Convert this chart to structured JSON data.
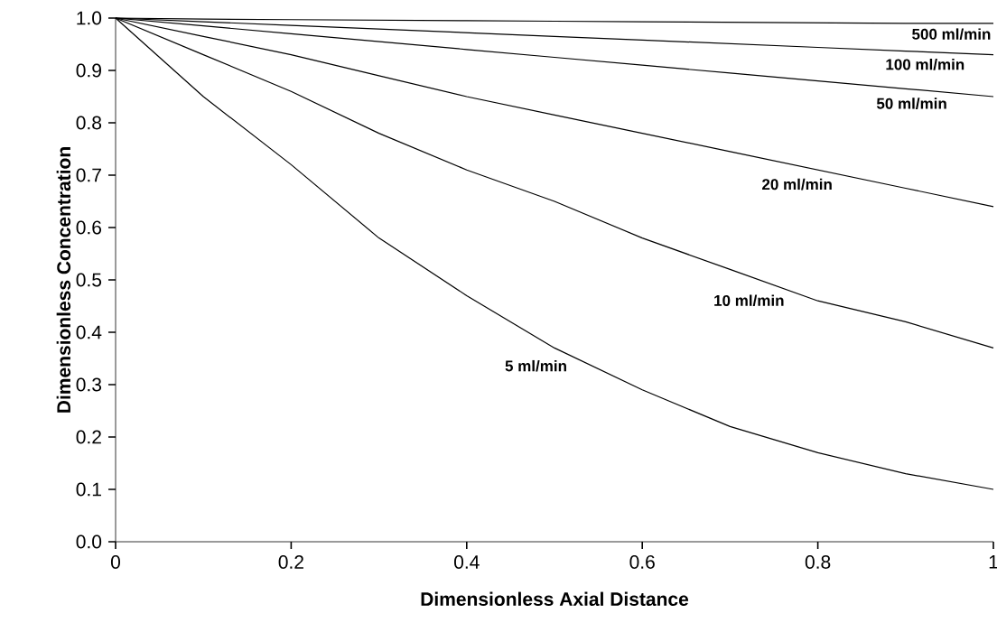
{
  "chart_data": {
    "type": "line",
    "xlabel": "Dimensionless Axial Distance",
    "ylabel": "Dimensionless Concentration",
    "x": [
      0,
      0.1,
      0.2,
      0.3,
      0.4,
      0.5,
      0.6,
      0.7,
      0.8,
      0.9,
      1.0
    ],
    "series": [
      {
        "name": "500 ml/min",
        "color": "#000000",
        "values": [
          1.0,
          0.998,
          0.997,
          0.996,
          0.995,
          0.994,
          0.993,
          0.992,
          0.991,
          0.99,
          0.99
        ]
      },
      {
        "name": "100 ml/min",
        "color": "#000000",
        "values": [
          1.0,
          0.993,
          0.986,
          0.979,
          0.972,
          0.965,
          0.958,
          0.951,
          0.944,
          0.937,
          0.93
        ]
      },
      {
        "name": "50 ml/min",
        "color": "#000000",
        "values": [
          1.0,
          0.985,
          0.97,
          0.955,
          0.94,
          0.925,
          0.91,
          0.895,
          0.88,
          0.865,
          0.85
        ]
      },
      {
        "name": "20 ml/min",
        "color": "#000000",
        "values": [
          1.0,
          0.965,
          0.93,
          0.89,
          0.85,
          0.815,
          0.78,
          0.745,
          0.71,
          0.675,
          0.64
        ]
      },
      {
        "name": "10 ml/min",
        "color": "#000000",
        "values": [
          1.0,
          0.93,
          0.86,
          0.78,
          0.71,
          0.65,
          0.58,
          0.52,
          0.46,
          0.42,
          0.37
        ]
      },
      {
        "name": "5 ml/min",
        "color": "#000000",
        "values": [
          1.0,
          0.85,
          0.72,
          0.58,
          0.47,
          0.37,
          0.29,
          0.22,
          0.17,
          0.13,
          0.1
        ]
      }
    ],
    "xlim": [
      0,
      1
    ],
    "ylim": [
      0,
      1
    ],
    "xticks": [
      0,
      0.2,
      0.4,
      0.6,
      0.8,
      1
    ],
    "yticks": [
      {
        "value": 0,
        "label": "0.0"
      },
      0.1,
      0.2,
      0.3,
      0.4,
      0.5,
      0.6,
      0.7,
      0.8,
      0.9,
      {
        "value": 1,
        "label": "1.0"
      }
    ],
    "grid": false,
    "legend": false,
    "marker": "none",
    "line_style": "solid"
  }
}
